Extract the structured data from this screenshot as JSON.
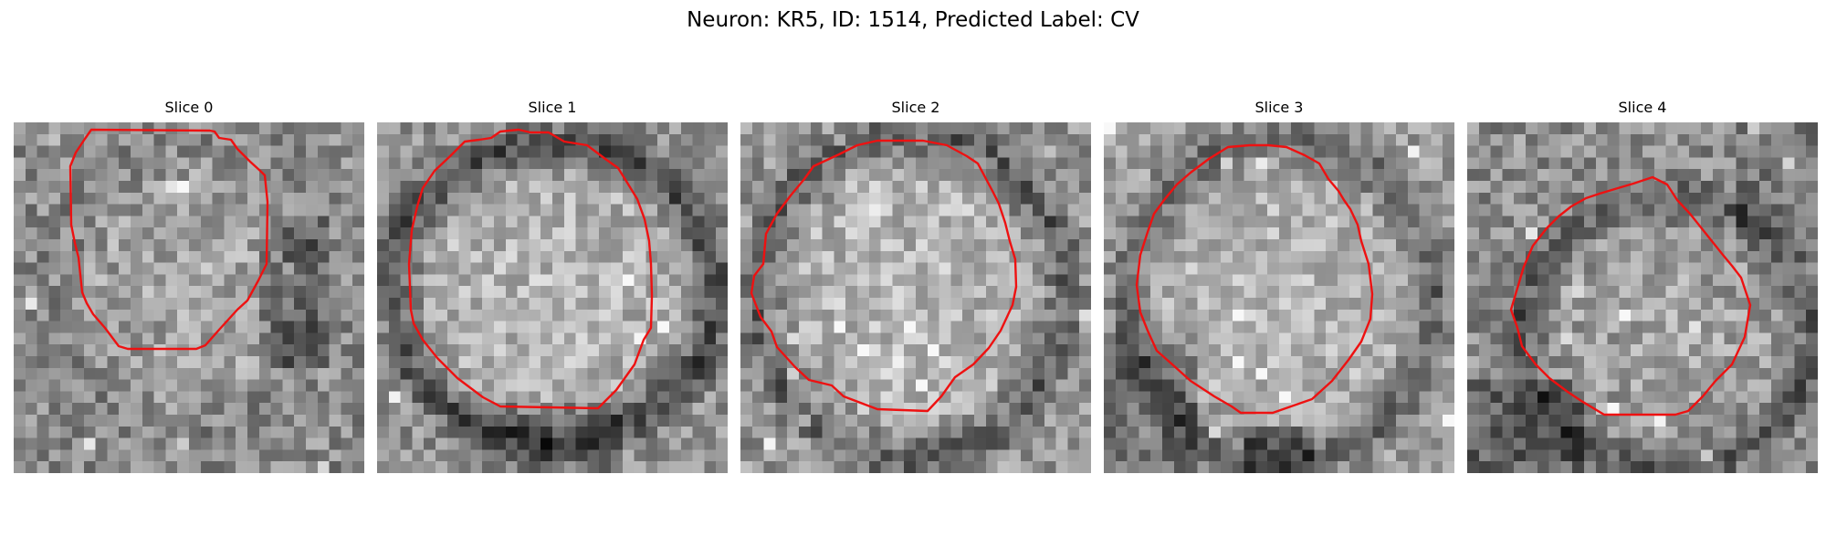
{
  "figure": {
    "title": "Neuron: KR5, ID: 1514, Predicted Label: CV"
  },
  "colors": {
    "outline": "#ee1111",
    "background": "#ffffff",
    "colormap": "grayscale"
  },
  "slices": [
    {
      "label": "Slice 0"
    },
    {
      "label": "Slice 1"
    },
    {
      "label": "Slice 2"
    },
    {
      "label": "Slice 3"
    },
    {
      "label": "Slice 4"
    }
  ]
}
